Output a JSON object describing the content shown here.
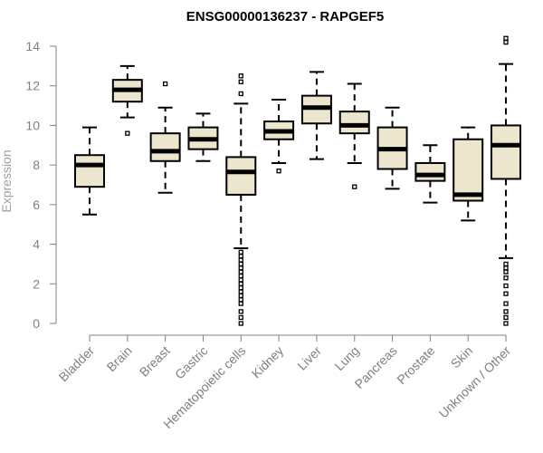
{
  "chart_data": {
    "type": "box",
    "title": "ENSG00000136237 - RAPGEF5",
    "xlabel": "",
    "ylabel": "Expression",
    "ylim": [
      0,
      14
    ],
    "yticks": [
      0,
      2,
      4,
      6,
      8,
      10,
      12,
      14
    ],
    "categories": [
      "Bladder",
      "Brain",
      "Breast",
      "Gastric",
      "Hematopoietic cells",
      "Kidney",
      "Liver",
      "Lung",
      "Pancreas",
      "Prostate",
      "Skin",
      "Unknown / Other"
    ],
    "boxes": [
      {
        "category": "Bladder",
        "whisker_low": 5.5,
        "q1": 6.9,
        "median": 8.0,
        "q3": 8.5,
        "whisker_high": 9.9,
        "outliers": []
      },
      {
        "category": "Brain",
        "whisker_low": 10.4,
        "q1": 11.2,
        "median": 11.8,
        "q3": 12.3,
        "whisker_high": 13.0,
        "outliers": [
          9.6
        ]
      },
      {
        "category": "Breast",
        "whisker_low": 6.6,
        "q1": 8.2,
        "median": 8.7,
        "q3": 9.6,
        "whisker_high": 10.9,
        "outliers": [
          12.1
        ]
      },
      {
        "category": "Gastric",
        "whisker_low": 8.2,
        "q1": 8.8,
        "median": 9.3,
        "q3": 9.9,
        "whisker_high": 10.6,
        "outliers": []
      },
      {
        "category": "Hematopoietic cells",
        "whisker_low": 3.8,
        "q1": 6.5,
        "median": 7.65,
        "q3": 8.4,
        "whisker_high": 11.1,
        "outliers": [
          12.5,
          12.2,
          11.6,
          3.6,
          3.4,
          3.2,
          3.0,
          2.8,
          2.6,
          2.4,
          2.2,
          2.0,
          1.8,
          1.6,
          1.4,
          1.2,
          1.0,
          0.6,
          0.3,
          0.0
        ]
      },
      {
        "category": "Kidney",
        "whisker_low": 8.1,
        "q1": 9.3,
        "median": 9.7,
        "q3": 10.2,
        "whisker_high": 11.3,
        "outliers": [
          7.7
        ]
      },
      {
        "category": "Liver",
        "whisker_low": 8.3,
        "q1": 10.1,
        "median": 10.9,
        "q3": 11.5,
        "whisker_high": 12.7,
        "outliers": []
      },
      {
        "category": "Lung",
        "whisker_low": 8.1,
        "q1": 9.6,
        "median": 10.0,
        "q3": 10.7,
        "whisker_high": 12.1,
        "outliers": [
          6.9
        ]
      },
      {
        "category": "Pancreas",
        "whisker_low": 6.8,
        "q1": 7.8,
        "median": 8.8,
        "q3": 9.9,
        "whisker_high": 10.9,
        "outliers": []
      },
      {
        "category": "Prostate",
        "whisker_low": 6.1,
        "q1": 7.2,
        "median": 7.5,
        "q3": 8.1,
        "whisker_high": 9.0,
        "outliers": []
      },
      {
        "category": "Skin",
        "whisker_low": 5.2,
        "q1": 6.2,
        "median": 6.5,
        "q3": 9.3,
        "whisker_high": 9.9,
        "outliers": []
      },
      {
        "category": "Unknown / Other",
        "whisker_low": 3.3,
        "q1": 7.3,
        "median": 9.0,
        "q3": 10.0,
        "whisker_high": 13.1,
        "outliers": [
          14.4,
          14.2,
          3.0,
          2.8,
          2.6,
          2.3,
          1.9,
          1.5,
          1.0,
          0.6,
          0.3,
          0.0
        ]
      }
    ],
    "grid": false,
    "legend": "none",
    "colors": {
      "box_fill": "#ede6cf",
      "box_stroke": "#000000",
      "median": "#000000",
      "whisker": "#000000",
      "outlier": "#000000",
      "axis": "#808080",
      "tick_label": "#808080",
      "ylabel": "#a0a0a0",
      "title": "#000000"
    }
  }
}
